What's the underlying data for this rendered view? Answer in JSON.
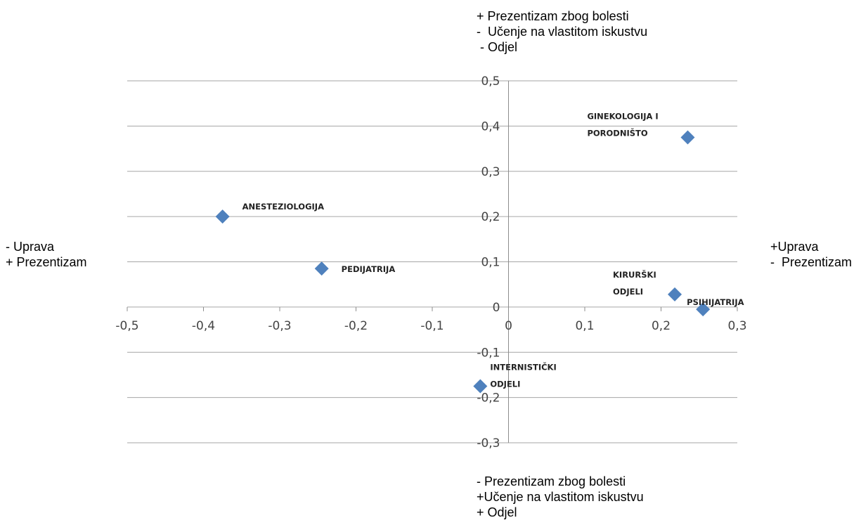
{
  "captions": {
    "top": [
      "+ Prezentizam zbog bolesti",
      "-  Učenje na vlastitom iskustvu",
      " - Odjel"
    ],
    "bottom": [
      "- Prezentizam zbog bolesti",
      "+Učenje na vlastitom iskustvu",
      "+ Odjel"
    ],
    "left": [
      "- Uprava",
      "+ Prezentizam"
    ],
    "right": [
      "+Uprava",
      "-  Prezentizam"
    ]
  },
  "chart_data": {
    "type": "scatter",
    "xlim": [
      -0.5,
      0.3
    ],
    "ylim": [
      -0.3,
      0.5
    ],
    "x_ticks": [
      "-0,5",
      "-0,4",
      "-0,3",
      "-0,2",
      "-0,1",
      "0",
      "0,1",
      "0,2",
      "0,3"
    ],
    "y_ticks": [
      "0,5",
      "0,4",
      "0,3",
      "0,2",
      "0,1",
      "0",
      "-0,1",
      "-0,2",
      "-0,3"
    ],
    "grid": "horizontal",
    "marker_color": "#4F81BD",
    "points": [
      {
        "label": [
          "GINEKOLOGIJA I",
          "PORODNIŠTO"
        ],
        "x": 0.235,
        "y": 0.375
      },
      {
        "label": [
          "ANESTEZIOLOGIJA"
        ],
        "x": -0.375,
        "y": 0.2
      },
      {
        "label": [
          "PEDIJATRIJA"
        ],
        "x": -0.245,
        "y": 0.085
      },
      {
        "label": [
          "KIRURŠKI",
          "ODJELI"
        ],
        "x": 0.218,
        "y": 0.028
      },
      {
        "label": [
          "PSIHIJATRIJA"
        ],
        "x": 0.255,
        "y": -0.005
      },
      {
        "label": [
          "INTERNISTIČKI",
          "ODJELI"
        ],
        "x": -0.037,
        "y": -0.175
      }
    ]
  }
}
